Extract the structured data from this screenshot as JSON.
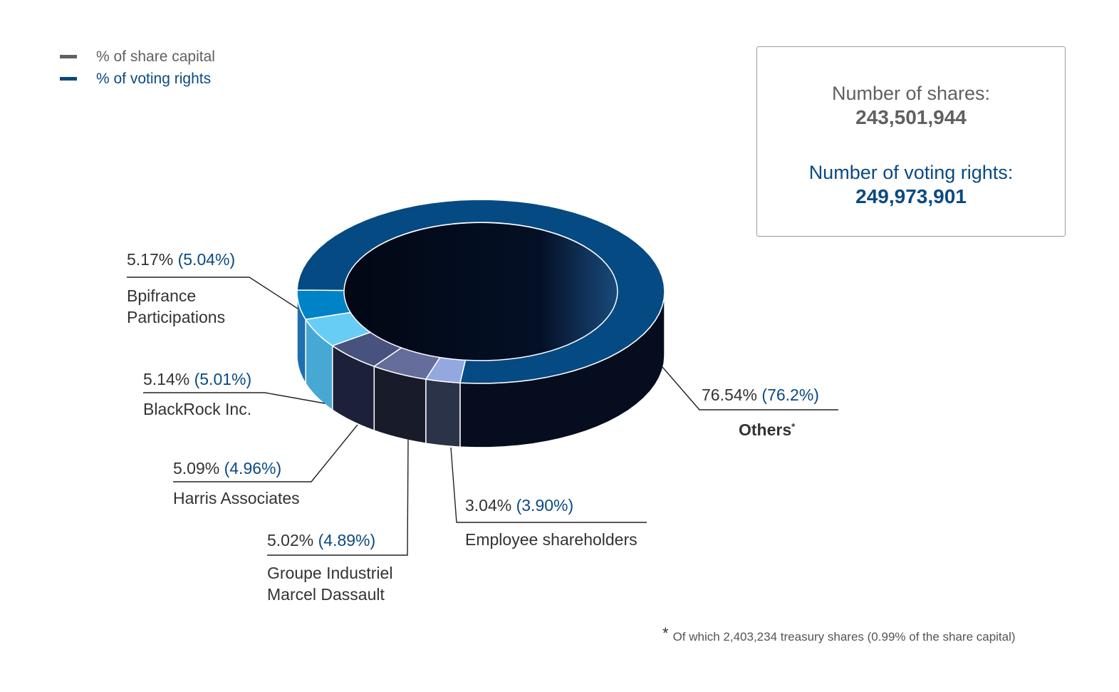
{
  "legend": {
    "share_capital_label": "% of share capital",
    "voting_rights_label": "% of voting rights"
  },
  "info": {
    "shares_label": "Number of shares:",
    "shares_value": "243,501,944",
    "votes_label": "Number of voting rights:",
    "votes_value": "249,973,901"
  },
  "colors": {
    "share_capital": "#606060",
    "voting_rights": "#0a4a82",
    "label_text": "#333333"
  },
  "chart_data": {
    "type": "pie",
    "series": [
      {
        "name": "% of share capital",
        "values": [
          5.17,
          5.14,
          5.09,
          5.02,
          3.04,
          76.54
        ]
      },
      {
        "name": "% of voting rights",
        "values": [
          5.04,
          5.01,
          4.96,
          4.89,
          3.9,
          76.2
        ]
      }
    ],
    "slices": [
      {
        "key": "bpifrance",
        "label_lines": [
          "Bpifrance",
          "Participations"
        ],
        "share_capital": 5.17,
        "share_capital_text": "5.17%",
        "voting_rights": 5.04,
        "voting_rights_text": "(5.04%)",
        "top_color": "#0083c6",
        "side_color": "#1f6fae",
        "bold": false,
        "asterisk": ""
      },
      {
        "key": "blackrock",
        "label_lines": [
          "BlackRock Inc."
        ],
        "share_capital": 5.14,
        "share_capital_text": "5.14%",
        "voting_rights": 5.01,
        "voting_rights_text": "(5.01%)",
        "top_color": "#68cdf5",
        "side_color": "#47a9d3",
        "bold": false,
        "asterisk": ""
      },
      {
        "key": "harris",
        "label_lines": [
          "Harris Associates"
        ],
        "share_capital": 5.09,
        "share_capital_text": "5.09%",
        "voting_rights": 4.96,
        "voting_rights_text": "(4.96%)",
        "top_color": "#47527e",
        "side_color": "#1c2038",
        "bold": false,
        "asterisk": ""
      },
      {
        "key": "dassault",
        "label_lines": [
          "Groupe Industriel",
          "Marcel Dassault"
        ],
        "share_capital": 5.02,
        "share_capital_text": "5.02%",
        "voting_rights": 4.89,
        "voting_rights_text": "(4.89%)",
        "top_color": "#656d9b",
        "side_color": "#181b2a",
        "bold": false,
        "asterisk": ""
      },
      {
        "key": "employees",
        "label_lines": [
          "Employee shareholders"
        ],
        "share_capital": 3.04,
        "share_capital_text": "3.04%",
        "voting_rights": 3.9,
        "voting_rights_text": "(3.90%)",
        "top_color": "#94a8e0",
        "side_color": "#2b3348",
        "bold": false,
        "asterisk": ""
      },
      {
        "key": "others",
        "label_lines": [
          "Others"
        ],
        "share_capital": 76.54,
        "share_capital_text": "76.54%",
        "voting_rights": 76.2,
        "voting_rights_text": "(76.2%)",
        "top_color": "#054a82",
        "side_color": "#050d1e",
        "bold": true,
        "asterisk": "*"
      }
    ]
  },
  "footnote": {
    "mark": "*",
    "text": "Of which 2,403,234 treasury shares (0.99% of the share capital)"
  }
}
